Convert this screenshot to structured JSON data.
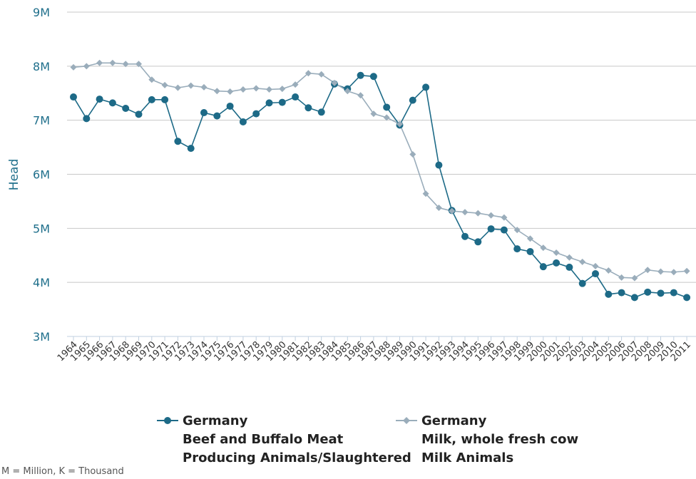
{
  "chart_data": {
    "type": "line",
    "ylabel": "Head",
    "ylim": [
      3000000,
      9000000
    ],
    "yticks": [
      {
        "value": 3000000,
        "label": "3M"
      },
      {
        "value": 4000000,
        "label": "4M"
      },
      {
        "value": 5000000,
        "label": "5M"
      },
      {
        "value": 6000000,
        "label": "6M"
      },
      {
        "value": 7000000,
        "label": "7M"
      },
      {
        "value": 8000000,
        "label": "8M"
      },
      {
        "value": 9000000,
        "label": "9M"
      }
    ],
    "x": [
      1964,
      1965,
      1966,
      1967,
      1968,
      1969,
      1970,
      1971,
      1972,
      1973,
      1974,
      1975,
      1976,
      1977,
      1978,
      1979,
      1980,
      1981,
      1982,
      1983,
      1984,
      1985,
      1986,
      1987,
      1988,
      1989,
      1990,
      1991,
      1992,
      1993,
      1994,
      1995,
      1996,
      1997,
      1998,
      1999,
      2000,
      2001,
      2002,
      2003,
      2004,
      2005,
      2006,
      2007,
      2008,
      2009,
      2010,
      2011
    ],
    "series": [
      {
        "name_lines": [
          "Germany",
          "Beef and Buffalo Meat",
          "Producing Animals/Slaughtered"
        ],
        "color": "#1d6a87",
        "marker": "circle",
        "values": [
          7430000,
          7030000,
          7390000,
          7320000,
          7220000,
          7110000,
          7380000,
          7380000,
          6610000,
          6480000,
          7140000,
          7080000,
          7260000,
          6970000,
          7120000,
          7320000,
          7330000,
          7430000,
          7230000,
          7150000,
          7670000,
          7580000,
          7830000,
          7810000,
          7240000,
          6910000,
          7370000,
          7610000,
          6170000,
          5330000,
          4850000,
          4750000,
          4990000,
          4970000,
          4620000,
          4570000,
          4290000,
          4360000,
          4280000,
          3980000,
          4160000,
          3780000,
          3810000,
          3720000,
          3820000,
          3800000,
          3810000,
          3720000
        ]
      },
      {
        "name_lines": [
          "Germany",
          "Milk, whole fresh cow",
          "Milk Animals"
        ],
        "color": "#9aadbb",
        "marker": "diamond",
        "values": [
          7980000,
          8000000,
          8060000,
          8060000,
          8040000,
          8040000,
          7750000,
          7650000,
          7600000,
          7640000,
          7610000,
          7540000,
          7530000,
          7570000,
          7590000,
          7570000,
          7580000,
          7660000,
          7870000,
          7850000,
          7690000,
          7540000,
          7460000,
          7120000,
          7050000,
          6930000,
          6370000,
          5640000,
          5380000,
          5320000,
          5300000,
          5280000,
          5240000,
          5200000,
          4970000,
          4810000,
          4640000,
          4550000,
          4460000,
          4380000,
          4300000,
          4220000,
          4090000,
          4080000,
          4230000,
          4200000,
          4190000,
          4210000
        ]
      }
    ],
    "grid": true,
    "legend_position": "bottom-center"
  },
  "legend": {
    "s1": {
      "l1": "Germany",
      "l2": "Beef and Buffalo Meat",
      "l3": "Producing Animals/Slaughtered"
    },
    "s2": {
      "l1": "Germany",
      "l2": "Milk, whole fresh cow",
      "l3": "Milk Animals"
    }
  },
  "footnote": "M = Million, K = Thousand"
}
